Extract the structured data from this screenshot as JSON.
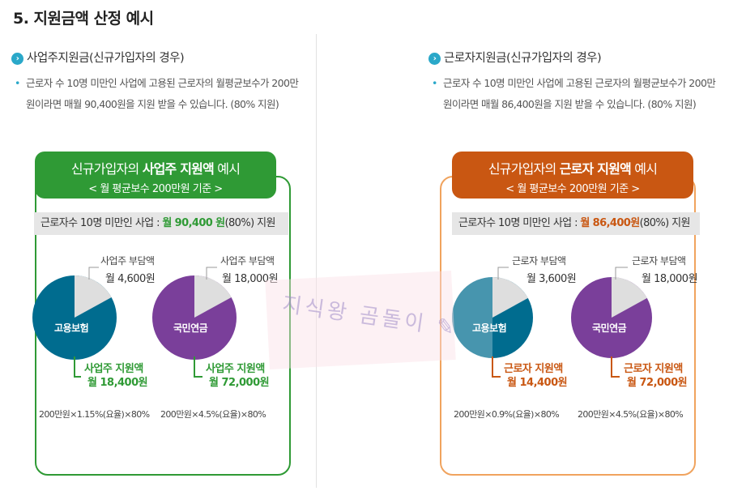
{
  "title": "5. 지원금액 산정 예시",
  "left": {
    "heading": "사업주지원금(신규가입자의 경우)",
    "desc": "근로자 수 10명 미만인 사업에 고용된 근로자의 월평균보수가 200만원이라면 매월 90,400원을 지원 받을 수 있습니다. (80% 지원)",
    "banner_pre": "신규가입자의 ",
    "banner_bold": "사업주 지원액",
    "banner_post": " 예시",
    "banner_sub": "< 월 평균보수 200만원 기준 >",
    "strip_pre": "근로자수 10명 미만인 사업 : ",
    "strip_amt": "월 90,400 원",
    "strip_post": "(80%) 지원",
    "pie1": {
      "name": "고용보험",
      "burden_label": "사업주 부담액",
      "burden_amt": "월 4,600원",
      "support_label": "사업주 지원액",
      "support_amt": "월 18,400원",
      "formula": "200만원×1.15%(요율)×80%"
    },
    "pie2": {
      "name": "국민연금",
      "burden_label": "사업주 부담액",
      "burden_amt": "월 18,000원",
      "support_label": "사업주 지원액",
      "support_amt": "월 72,000원",
      "formula": "200만원×4.5%(요율)×80%"
    }
  },
  "right": {
    "heading": "근로자지원금(신규가입자의 경우)",
    "desc": "근로자 수 10명 미만인 사업에 고용된 근로자의 월평균보수가 200만원이라면 매월 86,400원을 지원 받을 수 있습니다. (80% 지원)",
    "banner_pre": "신규가입자의 ",
    "banner_bold": "근로자 지원액",
    "banner_post": " 예시",
    "banner_sub": "< 월 평균보수 200만원 기준 >",
    "strip_pre": "근로자수 10명 미만인 사업 : ",
    "strip_amt": "월 86,400원",
    "strip_post": "(80%) 지원",
    "pie1": {
      "name": "고용보험",
      "burden_label": "근로자 부담액",
      "burden_amt": "월 3,600원",
      "support_label": "근로자 지원액",
      "support_amt": "월 14,400원",
      "formula": "200만원×0.9%(요율)×80%"
    },
    "pie2": {
      "name": "국민연금",
      "burden_label": "근로자 부담액",
      "burden_amt": "월 18,000원",
      "support_label": "근로자 지원액",
      "support_amt": "월 72,000원",
      "formula": "200만원×4.5%(요율)×80%"
    }
  },
  "watermark": "지식왕 곰돌이 ✎",
  "colors": {
    "green": "#2f9a35",
    "orange": "#c95712",
    "blue": "#006c8f",
    "purple": "#7a3f9a",
    "gray": "#dedede"
  },
  "pie_support_fraction": 0.8
}
